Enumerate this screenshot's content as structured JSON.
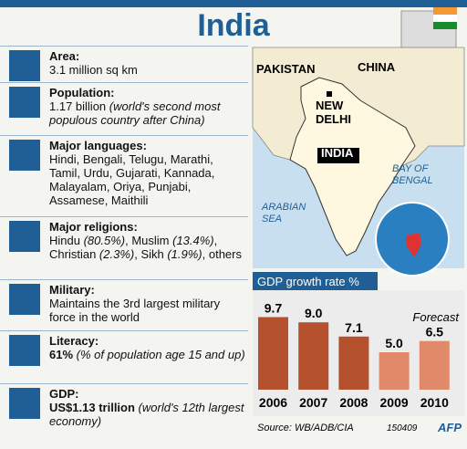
{
  "header": {
    "title": "India"
  },
  "facts": [
    {
      "label": "Area:",
      "parts": [
        {
          "text": "3.1 million sq km",
          "style": "normal"
        }
      ]
    },
    {
      "label": "Population:",
      "parts": [
        {
          "text": "1.17 billion ",
          "style": "normal"
        },
        {
          "text": "(world's second most populous country after China)",
          "style": "italic"
        }
      ]
    },
    {
      "label": "Major languages:",
      "parts": [
        {
          "text": "Hindi, Bengali, Telugu, Marathi, Tamil, Urdu, Gujarati, Kannada, Malayalam, Oriya, Punjabi, Assamese, Maithili",
          "style": "normal"
        }
      ]
    },
    {
      "label": "Major religions:",
      "parts": [
        {
          "text": "Hindu ",
          "style": "normal"
        },
        {
          "text": "(80.5%)",
          "style": "italic"
        },
        {
          "text": ", Muslim ",
          "style": "normal"
        },
        {
          "text": "(13.4%)",
          "style": "italic"
        },
        {
          "text": ", Christian ",
          "style": "normal"
        },
        {
          "text": "(2.3%)",
          "style": "italic"
        },
        {
          "text": ", Sikh ",
          "style": "normal"
        },
        {
          "text": "(1.9%)",
          "style": "italic"
        },
        {
          "text": ", others",
          "style": "normal"
        }
      ]
    },
    {
      "label": "Military:",
      "parts": [
        {
          "text": "Maintains the 3rd largest military force in the world",
          "style": "normal"
        }
      ]
    },
    {
      "label": "Literacy:",
      "parts": [
        {
          "text": "61% ",
          "style": "bold"
        },
        {
          "text": "(% of population age 15 and up)",
          "style": "italic"
        }
      ]
    },
    {
      "label": "GDP:",
      "parts": [
        {
          "text": "US$1.13 trillion ",
          "style": "bold"
        },
        {
          "text": "(world's 12th largest economy)",
          "style": "italic"
        }
      ]
    }
  ],
  "map": {
    "labels": [
      "PAKISTAN",
      "CHINA",
      "NEW DELHI",
      "INDIA",
      "BAY OF BENGAL",
      "ARABIAN SEA"
    ]
  },
  "chart_data": {
    "type": "bar",
    "title": "GDP growth rate %",
    "categories": [
      "2006",
      "2007",
      "2008",
      "2009",
      "2010"
    ],
    "values": [
      9.7,
      9.0,
      7.1,
      5.0,
      6.5
    ],
    "value_labels": [
      "9.7",
      "9.0",
      "7.1",
      "5.0",
      "6.5"
    ],
    "colors": [
      "#b5522d",
      "#b5522d",
      "#b5522d",
      "#e08a6a",
      "#e08a6a"
    ],
    "annotation": "Forecast"
  },
  "footer": {
    "source": "Source: WB/ADB/CIA",
    "code": "150409",
    "agency": "AFP"
  }
}
